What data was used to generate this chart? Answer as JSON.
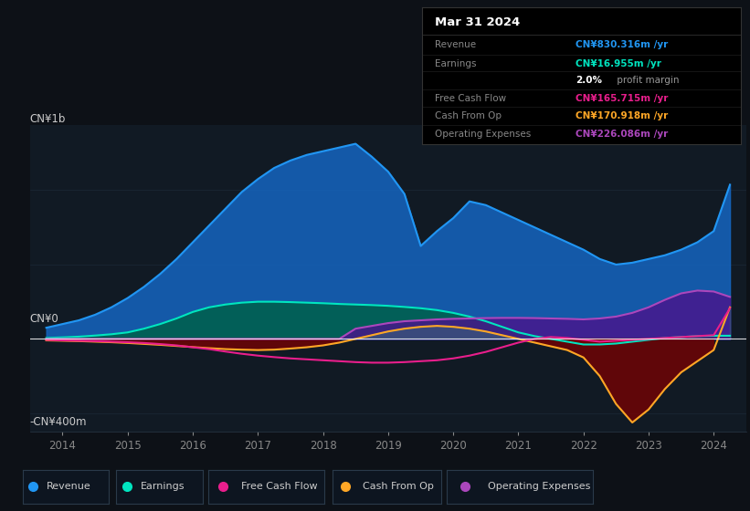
{
  "bg_color": "#0d1117",
  "plot_bg_color": "#111a24",
  "title": "Mar 31 2024",
  "tooltip": {
    "Revenue": {
      "value": "CN¥830.316m /yr",
      "color": "#2196f3"
    },
    "Earnings": {
      "value": "CN¥16.955m /yr",
      "color": "#00e5c0"
    },
    "profit_margin": "2.0%",
    "Free Cash Flow": {
      "value": "CN¥165.715m /yr",
      "color": "#e91e8c"
    },
    "Cash From Op": {
      "value": "CN¥170.918m /yr",
      "color": "#ffa726"
    },
    "Operating Expenses": {
      "value": "CN¥226.086m /yr",
      "color": "#ab47bc"
    }
  },
  "ylabel_top": "CN¥1b",
  "ylabel_bottom": "-CN¥400m",
  "ylabel_zero": "CN¥0",
  "ylim": [
    -500,
    1150
  ],
  "xlim": [
    2013.5,
    2024.5
  ],
  "x_ticks": [
    2014,
    2015,
    2016,
    2017,
    2018,
    2019,
    2020,
    2021,
    2022,
    2023,
    2024
  ],
  "colors": {
    "revenue": "#2196f3",
    "revenue_fill": "#1565c0",
    "earnings": "#00e5c0",
    "earnings_fill": "#006050",
    "free_cash_flow": "#e91e8c",
    "cash_from_op": "#ffa726",
    "cash_from_op_neg_fill": "#7b0000",
    "operating_expenses": "#ab47bc",
    "operating_expenses_fill": "#4a148c"
  },
  "legend": [
    {
      "label": "Revenue",
      "color": "#2196f3"
    },
    {
      "label": "Earnings",
      "color": "#00e5c0"
    },
    {
      "label": "Free Cash Flow",
      "color": "#e91e8c"
    },
    {
      "label": "Cash From Op",
      "color": "#ffa726"
    },
    {
      "label": "Operating Expenses",
      "color": "#ab47bc"
    }
  ],
  "grid_color": "#1e2d3d",
  "zero_line_color": "#ffffff"
}
